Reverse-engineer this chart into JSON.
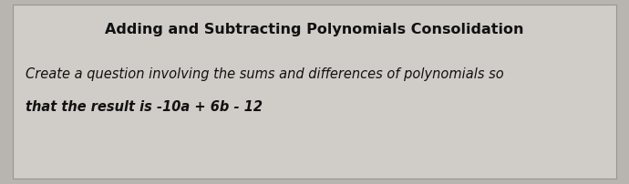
{
  "title": "Adding and Subtracting Polynomials Consolidation",
  "body_line1": "Create a question involving the sums and differences of polynomials so",
  "body_line2_prefix": "that the result is -10a",
  "body_line2_middle": " + 6b",
  "body_line2_suffix": " - 12",
  "bg_color": "#b8b5b0",
  "card_color": "#cbc8c3",
  "title_fontsize": 11.5,
  "body_fontsize": 10.5,
  "title_color": "#111111",
  "body_color": "#111111",
  "fig_width": 6.9,
  "fig_height": 2.03,
  "dpi": 100
}
